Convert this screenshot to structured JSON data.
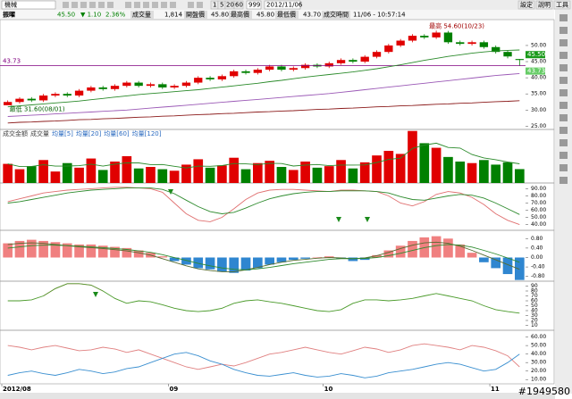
{
  "toolbar": {
    "group": "機械",
    "periods": [
      "1",
      "5",
      "20",
      "60"
    ],
    "count": "999",
    "date": "2012/11/06",
    "buttons": [
      "設定",
      "說明",
      "工具"
    ]
  },
  "info": {
    "stock": "振曜",
    "price": "45.50",
    "change": "▼ 1.10",
    "percent": "2.36%",
    "volume_label": "成交量",
    "volume": "1,814",
    "open_label": "開盤價",
    "open": "45.80",
    "high_label": "最高價",
    "high": "45.80",
    "low_label": "最低價",
    "low": "43.70",
    "time_label": "成交時間",
    "time": "11/06 - 10:57:14"
  },
  "watermark": "#1949580",
  "chart_data": [
    {
      "type": "candlestick",
      "up_color": "#e00000",
      "down_color": "#008000",
      "open": [
        31.5,
        32.5,
        33.5,
        33,
        34.5,
        35,
        34.5,
        36,
        37,
        36.5,
        37.5,
        38.5,
        37.5,
        38,
        37,
        37.5,
        38.5,
        40,
        39.5,
        40.5,
        42,
        41.5,
        42.5,
        43.5,
        42.5,
        43,
        44,
        43.5,
        44.5,
        45.5,
        45,
        46.5,
        48,
        50,
        51.5,
        53,
        52.5,
        54,
        51,
        50.5,
        51,
        49.5,
        48,
        45.8
      ],
      "high": [
        33,
        34,
        34,
        35,
        35.5,
        35.5,
        36.5,
        37.5,
        37.5,
        38,
        39,
        39,
        38.5,
        38.5,
        38,
        39,
        40.5,
        40.5,
        41,
        42.5,
        42.5,
        43,
        44,
        44,
        43.5,
        44.5,
        44.5,
        45,
        46,
        46,
        47,
        48.5,
        50.5,
        52,
        53.5,
        53.5,
        54.6,
        54.5,
        51.5,
        51.5,
        51.5,
        50,
        48.5,
        45.8
      ],
      "low": [
        31.6,
        32,
        32.5,
        32.5,
        34,
        34,
        34,
        35.5,
        36,
        36,
        37,
        37,
        37,
        36.5,
        36.5,
        37,
        38,
        39,
        39,
        40,
        41,
        41,
        42,
        42,
        42,
        42.5,
        43,
        43,
        44,
        44.5,
        44.5,
        46,
        47.5,
        49.5,
        51,
        52,
        52,
        50.5,
        50,
        50,
        49,
        47.5,
        46,
        43.7
      ],
      "close": [
        32.5,
        33.5,
        33,
        34.5,
        35,
        34.5,
        36,
        37,
        36.5,
        37.5,
        38.5,
        37.5,
        38,
        37,
        37.5,
        38.5,
        40,
        39.5,
        40.5,
        42,
        41.5,
        42.5,
        43.5,
        42.5,
        43,
        44,
        43.5,
        44.5,
        45.5,
        45,
        46.5,
        48,
        50,
        51.5,
        53,
        52.5,
        54,
        51,
        50.5,
        51,
        49.5,
        48,
        46.6,
        45.5
      ],
      "ylim": [
        24,
        58
      ],
      "yticks": [
        {
          "value": 25,
          "label": "25.00"
        },
        {
          "value": 30,
          "label": "30.00"
        },
        {
          "value": 35,
          "label": "35.00"
        },
        {
          "value": 40,
          "label": "40.00"
        },
        {
          "value": 45,
          "label": "45.00"
        },
        {
          "value": 50,
          "label": "50.00"
        }
      ],
      "ref_line": 43.73,
      "ref_color": "#800080",
      "price_tags": [
        {
          "value": 45.5,
          "label": "45.50"
        },
        {
          "value": 43.73,
          "label": "43.73"
        }
      ],
      "annotations": [
        "最高 54.60(10/23)",
        "最低 31.60(08/01)"
      ],
      "series": [
        {
          "color": "#2a8a2a",
          "values": [
            31,
            31.3,
            31.6,
            31.9,
            32.2,
            32.5,
            32.8,
            33.2,
            33.6,
            34,
            34.4,
            34.8,
            35.1,
            35.4,
            35.7,
            36,
            36.3,
            36.7,
            37.1,
            37.5,
            37.9,
            38.3,
            38.8,
            39.2,
            39.7,
            40.2,
            40.6,
            41,
            41.4,
            41.8,
            42.3,
            42.8,
            43.4,
            44,
            44.7,
            45.4,
            46,
            46.6,
            47.1,
            47.6,
            48,
            48.3,
            48.5,
            48.6
          ]
        },
        {
          "color": "#9b59b6",
          "values": [
            28,
            28.2,
            28.4,
            28.6,
            28.8,
            29,
            29.2,
            29.4,
            29.6,
            29.8,
            30,
            30.3,
            30.6,
            30.9,
            31.2,
            31.5,
            31.8,
            32.1,
            32.4,
            32.7,
            33,
            33.3,
            33.6,
            33.9,
            34.2,
            34.5,
            34.8,
            35.1,
            35.5,
            35.9,
            36.3,
            36.7,
            37.1,
            37.5,
            37.9,
            38.3,
            38.7,
            39.1,
            39.5,
            39.9,
            40.3,
            40.7,
            41,
            41.3
          ]
        },
        {
          "color": "#8b1a1a",
          "values": [
            26,
            26.2,
            26.3,
            26.5,
            26.6,
            26.8,
            27,
            27.1,
            27.3,
            27.4,
            27.6,
            27.8,
            27.9,
            28.1,
            28.2,
            28.4,
            28.6,
            28.7,
            28.9,
            29,
            29.2,
            29.4,
            29.5,
            29.7,
            29.8,
            30,
            30.2,
            30.3,
            30.5,
            30.6,
            30.8,
            31,
            31.1,
            31.3,
            31.4,
            31.6,
            31.8,
            31.9,
            32.1,
            32.2,
            32.4,
            32.6,
            32.7,
            32.9
          ]
        }
      ]
    },
    {
      "type": "bar",
      "legend_labels": [
        "成交金額",
        "成交量",
        "均量[5]",
        "均量[20]",
        "均量[60]",
        "均量[120]"
      ],
      "ylim": [
        0,
        7000
      ],
      "values": [
        2500,
        1800,
        2200,
        3000,
        1500,
        2600,
        2000,
        3200,
        1700,
        2800,
        3500,
        1900,
        2100,
        1800,
        1600,
        2400,
        3100,
        2000,
        2300,
        3300,
        1800,
        2600,
        2900,
        2100,
        1700,
        2800,
        2000,
        2200,
        3000,
        1900,
        2700,
        3600,
        4200,
        3800,
        6800,
        5200,
        4600,
        3400,
        2800,
        2600,
        3000,
        2400,
        2700,
        1814
      ],
      "series": [
        {
          "color": "#2a8a2a",
          "values": [
            2500,
            2150,
            2170,
            2380,
            2200,
            2220,
            2260,
            2460,
            2200,
            2460,
            2640,
            2620,
            2400,
            2420,
            2180,
            1960,
            2200,
            2180,
            2280,
            2540,
            2500,
            2400,
            2580,
            2540,
            2220,
            2340,
            2420,
            2260,
            2340,
            2340,
            2360,
            2680,
            3080,
            3240,
            4520,
            4960,
            5200,
            4640,
            4560,
            3720,
            3280,
            3040,
            2740,
            2508
          ]
        }
      ]
    },
    {
      "type": "line",
      "ylim": [
        32,
        98
      ],
      "yticks": [
        {
          "value": 40,
          "label": "40.00"
        },
        {
          "value": 50,
          "label": "50.00"
        },
        {
          "value": 60,
          "label": "60.00"
        },
        {
          "value": 70,
          "label": "70.00"
        },
        {
          "value": 80,
          "label": "80.00"
        },
        {
          "value": 90,
          "label": "90.00"
        }
      ],
      "series": [
        {
          "color": "#e07070",
          "values": [
            72,
            76,
            80,
            84,
            86,
            88,
            89,
            90,
            91,
            92,
            92,
            91,
            90,
            85,
            70,
            55,
            46,
            44,
            50,
            62,
            75,
            84,
            88,
            89,
            89,
            88,
            87,
            86,
            88,
            88,
            87,
            86,
            80,
            70,
            66,
            72,
            82,
            86,
            84,
            78,
            68,
            55,
            46,
            40
          ]
        },
        {
          "color": "#2e8b2e",
          "values": [
            70,
            72,
            75,
            78,
            81,
            84,
            86,
            88,
            89,
            90,
            91,
            91,
            91,
            89,
            83,
            74,
            65,
            58,
            55,
            57,
            63,
            70,
            76,
            80,
            83,
            85,
            86,
            86,
            87,
            87,
            87,
            86,
            84,
            79,
            75,
            74,
            77,
            80,
            82,
            81,
            77,
            70,
            62,
            54
          ]
        }
      ]
    },
    {
      "type": "bar",
      "pos_color": "#f08080",
      "neg_color": "#2f86d0",
      "ylim": [
        -1.0,
        1.15
      ],
      "yticks": [
        {
          "value": -0.8,
          "label": "-0.80"
        },
        {
          "value": -0.4,
          "label": "-0.40"
        },
        {
          "value": 0,
          "label": "0.00"
        },
        {
          "value": 0.4,
          "label": "0.40"
        },
        {
          "value": 0.8,
          "label": "0.80"
        }
      ],
      "values": [
        0.6,
        0.7,
        0.75,
        0.7,
        0.65,
        0.6,
        0.55,
        0.55,
        0.5,
        0.45,
        0.4,
        0.3,
        0.2,
        0.05,
        -0.15,
        -0.3,
        -0.45,
        -0.5,
        -0.6,
        -0.65,
        -0.55,
        -0.45,
        -0.3,
        -0.2,
        -0.1,
        -0.05,
        0.02,
        0.05,
        -0.05,
        -0.15,
        -0.1,
        0.1,
        0.3,
        0.5,
        0.7,
        0.85,
        0.9,
        0.8,
        0.55,
        0.2,
        -0.2,
        -0.45,
        -0.7,
        -0.95
      ],
      "series": [
        {
          "color": "#556b2f",
          "values": [
            0.55,
            0.6,
            0.62,
            0.6,
            0.55,
            0.5,
            0.45,
            0.42,
            0.38,
            0.33,
            0.28,
            0.2,
            0.1,
            -0.05,
            -0.2,
            -0.35,
            -0.48,
            -0.55,
            -0.6,
            -0.6,
            -0.52,
            -0.42,
            -0.3,
            -0.2,
            -0.12,
            -0.08,
            -0.03,
            0,
            -0.02,
            -0.05,
            -0.02,
            0.08,
            0.22,
            0.38,
            0.52,
            0.62,
            0.65,
            0.6,
            0.48,
            0.3,
            0.1,
            -0.1,
            -0.3,
            -0.5
          ]
        },
        {
          "color": "#2e8b2e",
          "values": [
            0.4,
            0.45,
            0.5,
            0.52,
            0.52,
            0.5,
            0.48,
            0.45,
            0.42,
            0.38,
            0.34,
            0.28,
            0.22,
            0.12,
            0,
            -0.12,
            -0.25,
            -0.35,
            -0.44,
            -0.5,
            -0.52,
            -0.48,
            -0.42,
            -0.34,
            -0.26,
            -0.2,
            -0.14,
            -0.08,
            -0.05,
            -0.05,
            -0.04,
            0,
            0.08,
            0.18,
            0.3,
            0.42,
            0.5,
            0.55,
            0.52,
            0.44,
            0.3,
            0.15,
            -0.02,
            -0.2
          ]
        }
      ]
    },
    {
      "type": "line",
      "ylim": [
        0,
        100
      ],
      "yticks": [
        10,
        20,
        30,
        40,
        50,
        60,
        70,
        80,
        90
      ],
      "series": [
        {
          "color": "#f08080",
          "values": [
            null,
            null,
            null,
            70,
            85,
            95,
            95,
            92,
            80,
            null,
            null,
            null,
            null,
            null,
            null,
            null,
            null,
            null,
            null,
            null,
            null,
            null,
            null,
            null,
            null,
            null,
            null,
            null,
            null,
            null,
            null,
            null,
            null,
            null,
            null,
            null,
            null,
            null,
            null,
            null,
            null,
            null,
            null,
            null
          ]
        },
        {
          "color": "#4a9a2a",
          "values": [
            60,
            60,
            62,
            70,
            85,
            95,
            95,
            92,
            80,
            65,
            55,
            60,
            58,
            52,
            45,
            40,
            38,
            40,
            45,
            55,
            60,
            62,
            58,
            55,
            50,
            45,
            40,
            38,
            42,
            55,
            62,
            62,
            60,
            62,
            65,
            70,
            75,
            70,
            65,
            60,
            50,
            42,
            38,
            35
          ]
        }
      ]
    },
    {
      "type": "line",
      "ylim": [
        5,
        68
      ],
      "yticks": [
        {
          "value": 10,
          "label": "10.00"
        },
        {
          "value": 20,
          "label": "20.00"
        },
        {
          "value": 30,
          "label": "30.00"
        },
        {
          "value": 40,
          "label": "40.00"
        },
        {
          "value": 50,
          "label": "50.00"
        },
        {
          "value": 60,
          "label": "60.00"
        }
      ],
      "categories": [
        "2012/08",
        null,
        null,
        null,
        null,
        null,
        null,
        null,
        null,
        null,
        null,
        null,
        null,
        null,
        "09",
        null,
        null,
        null,
        null,
        null,
        null,
        null,
        null,
        null,
        null,
        null,
        null,
        "10",
        null,
        null,
        null,
        null,
        null,
        null,
        null,
        null,
        null,
        null,
        null,
        null,
        null,
        "11",
        null,
        null
      ],
      "series": [
        {
          "color": "#e08080",
          "values": [
            50,
            48,
            45,
            48,
            50,
            47,
            44,
            45,
            48,
            46,
            42,
            45,
            40,
            35,
            30,
            25,
            22,
            25,
            28,
            26,
            30,
            35,
            40,
            42,
            45,
            48,
            45,
            42,
            40,
            44,
            48,
            46,
            42,
            45,
            50,
            52,
            50,
            48,
            45,
            50,
            48,
            44,
            38,
            25
          ]
        },
        {
          "color": "#3a8fd0",
          "values": [
            15,
            18,
            20,
            17,
            15,
            18,
            22,
            20,
            17,
            19,
            23,
            25,
            30,
            35,
            40,
            42,
            38,
            32,
            28,
            22,
            18,
            15,
            14,
            16,
            18,
            15,
            13,
            14,
            17,
            15,
            12,
            14,
            18,
            20,
            22,
            25,
            28,
            30,
            28,
            24,
            20,
            22,
            30,
            40
          ]
        }
      ]
    }
  ]
}
